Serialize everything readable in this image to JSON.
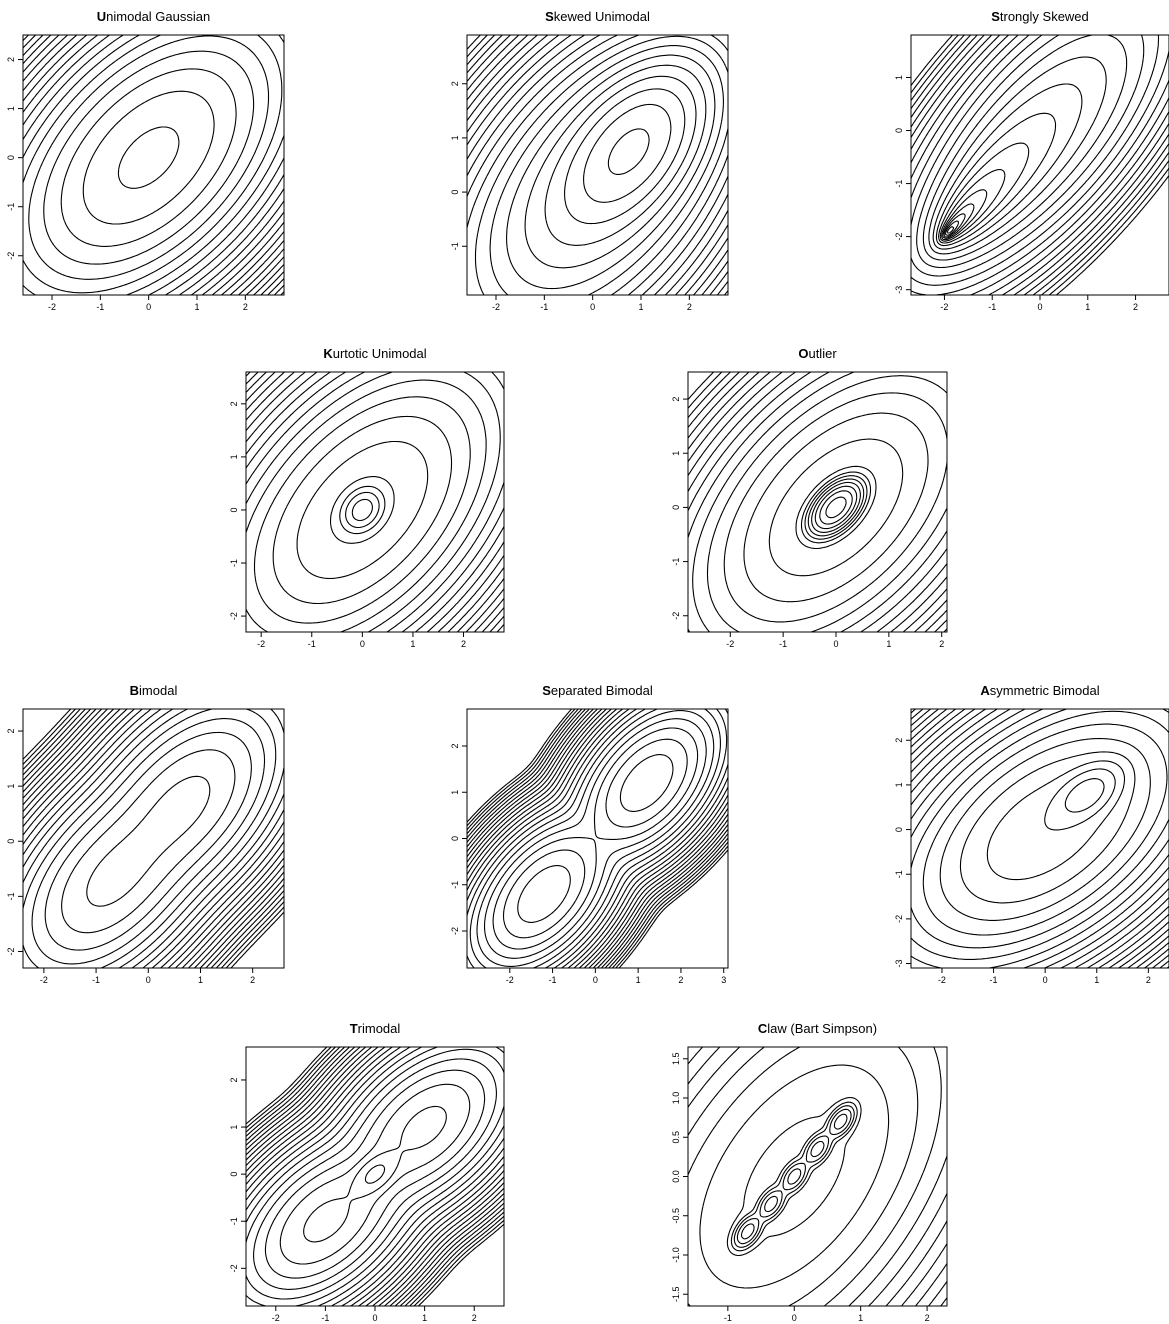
{
  "chart_data": [
    {
      "type": "contour",
      "title_initial": "U",
      "title_rest": "nimodal Gaussian",
      "x_ticks": [
        "-2",
        "-1",
        "0",
        "1",
        "2"
      ],
      "x_tick_values": [
        -2,
        -1,
        0,
        1,
        2
      ],
      "y_ticks": [
        "-2",
        "-1",
        "0",
        "1",
        "2"
      ],
      "y_tick_values": [
        -2,
        -1,
        0,
        1,
        2
      ],
      "xlim": [
        -2.6,
        2.8
      ],
      "ylim": [
        -2.8,
        2.5
      ],
      "components": [
        {
          "weight": 1,
          "mean": [
            0,
            0
          ],
          "cov": [
            [
              1,
              0.5
            ],
            [
              0.5,
              1
            ]
          ]
        }
      ]
    },
    {
      "type": "contour",
      "title_initial": "S",
      "title_rest": "kewed Unimodal",
      "x_ticks": [
        "-2",
        "-1",
        "0",
        "1",
        "2"
      ],
      "x_tick_values": [
        -2,
        -1,
        0,
        1,
        2
      ],
      "y_ticks": [
        "-1",
        "0",
        "1",
        "2"
      ],
      "y_tick_values": [
        -1,
        0,
        1,
        2
      ],
      "xlim": [
        -2.6,
        2.8
      ],
      "ylim": [
        -1.9,
        2.9
      ],
      "components": [
        {
          "weight": 0.2,
          "mean": [
            0,
            0
          ],
          "cov": [
            [
              1,
              0.5
            ],
            [
              0.5,
              1
            ]
          ]
        },
        {
          "weight": 0.2,
          "mean": [
            0.5,
            0.5
          ],
          "cov": [
            [
              0.64,
              0.32
            ],
            [
              0.32,
              0.64
            ]
          ]
        },
        {
          "weight": 0.6,
          "mean": [
            0.8,
            0.8
          ],
          "cov": [
            [
              0.36,
              0.18
            ],
            [
              0.18,
              0.36
            ]
          ]
        }
      ]
    },
    {
      "type": "contour",
      "title_initial": "S",
      "title_rest": "trongly Skewed",
      "x_ticks": [
        "-2",
        "-1",
        "0",
        "1",
        "2"
      ],
      "x_tick_values": [
        -2,
        -1,
        0,
        1,
        2
      ],
      "y_ticks": [
        "-3",
        "-2",
        "-1",
        "0",
        "1"
      ],
      "y_tick_values": [
        -3,
        -2,
        -1,
        0,
        1
      ],
      "xlim": [
        -2.7,
        2.7
      ],
      "ylim": [
        -3.1,
        1.8
      ],
      "components": [
        {
          "weight": 0.125,
          "mean": [
            0,
            0
          ],
          "cov": [
            [
              1,
              0.7
            ],
            [
              0.7,
              1
            ]
          ]
        },
        {
          "weight": 0.125,
          "mean": [
            -0.67,
            -0.67
          ],
          "cov": [
            [
              0.44,
              0.31
            ],
            [
              0.31,
              0.44
            ]
          ]
        },
        {
          "weight": 0.125,
          "mean": [
            -1.11,
            -1.11
          ],
          "cov": [
            [
              0.2,
              0.14
            ],
            [
              0.14,
              0.2
            ]
          ]
        },
        {
          "weight": 0.125,
          "mean": [
            -1.41,
            -1.41
          ],
          "cov": [
            [
              0.088,
              0.06
            ],
            [
              0.06,
              0.088
            ]
          ]
        },
        {
          "weight": 0.125,
          "mean": [
            -1.61,
            -1.61
          ],
          "cov": [
            [
              0.039,
              0.027
            ],
            [
              0.027,
              0.039
            ]
          ]
        },
        {
          "weight": 0.125,
          "mean": [
            -1.74,
            -1.74
          ],
          "cov": [
            [
              0.017,
              0.012
            ],
            [
              0.012,
              0.017
            ]
          ]
        },
        {
          "weight": 0.125,
          "mean": [
            -1.83,
            -1.83
          ],
          "cov": [
            [
              0.008,
              0.005
            ],
            [
              0.005,
              0.008
            ]
          ]
        },
        {
          "weight": 0.125,
          "mean": [
            -1.89,
            -1.89
          ],
          "cov": [
            [
              0.0034,
              0.0024
            ],
            [
              0.0024,
              0.0034
            ]
          ]
        }
      ]
    },
    {
      "type": "contour",
      "title_initial": "K",
      "title_rest": "urtotic Unimodal",
      "x_ticks": [
        "-2",
        "-1",
        "0",
        "1",
        "2"
      ],
      "x_tick_values": [
        -2,
        -1,
        0,
        1,
        2
      ],
      "y_ticks": [
        "-2",
        "-1",
        "0",
        "1",
        "2"
      ],
      "y_tick_values": [
        -2,
        -1,
        0,
        1,
        2
      ],
      "xlim": [
        -2.3,
        2.8
      ],
      "ylim": [
        -2.3,
        2.6
      ],
      "components": [
        {
          "weight": 0.667,
          "mean": [
            0,
            0
          ],
          "cov": [
            [
              1,
              0.5
            ],
            [
              0.5,
              1
            ]
          ]
        },
        {
          "weight": 0.333,
          "mean": [
            0,
            0
          ],
          "cov": [
            [
              0.04,
              0.01
            ],
            [
              0.01,
              0.04
            ]
          ]
        }
      ]
    },
    {
      "type": "contour",
      "title_initial": "O",
      "title_rest": "utlier",
      "x_ticks": [
        "-2",
        "-1",
        "0",
        "1",
        "2"
      ],
      "x_tick_values": [
        -2,
        -1,
        0,
        1,
        2
      ],
      "y_ticks": [
        "-2",
        "-1",
        "0",
        "1",
        "2"
      ],
      "y_tick_values": [
        -2,
        -1,
        0,
        1,
        2
      ],
      "xlim": [
        -2.8,
        2.1
      ],
      "ylim": [
        -2.3,
        2.5
      ],
      "components": [
        {
          "weight": 0.1,
          "mean": [
            0,
            0
          ],
          "cov": [
            [
              1,
              0.5
            ],
            [
              0.5,
              1
            ]
          ]
        },
        {
          "weight": 0.9,
          "mean": [
            0,
            0
          ],
          "cov": [
            [
              0.04,
              0.02
            ],
            [
              0.02,
              0.04
            ]
          ]
        }
      ]
    },
    {
      "type": "contour",
      "title_initial": "B",
      "title_rest": "imodal",
      "x_ticks": [
        "-2",
        "-1",
        "0",
        "1",
        "2"
      ],
      "x_tick_values": [
        -2,
        -1,
        0,
        1,
        2
      ],
      "y_ticks": [
        "-2",
        "-1",
        "0",
        "1",
        "2"
      ],
      "y_tick_values": [
        -2,
        -1,
        0,
        1,
        2
      ],
      "xlim": [
        -2.4,
        2.6
      ],
      "ylim": [
        -2.3,
        2.4
      ],
      "components": [
        {
          "weight": 0.5,
          "mean": [
            -0.7,
            -0.7
          ],
          "cov": [
            [
              0.49,
              0.245
            ],
            [
              0.245,
              0.49
            ]
          ]
        },
        {
          "weight": 0.5,
          "mean": [
            0.7,
            0.7
          ],
          "cov": [
            [
              0.49,
              0.245
            ],
            [
              0.245,
              0.49
            ]
          ]
        }
      ]
    },
    {
      "type": "contour",
      "title_initial": "S",
      "title_rest": "eparated Bimodal",
      "x_ticks": [
        "-2",
        "-1",
        "0",
        "1",
        "2",
        "3"
      ],
      "x_tick_values": [
        -2,
        -1,
        0,
        1,
        2,
        3
      ],
      "y_ticks": [
        "-2",
        "-1",
        "0",
        "1",
        "2"
      ],
      "y_tick_values": [
        -2,
        -1,
        0,
        1,
        2
      ],
      "xlim": [
        -3.0,
        3.1
      ],
      "ylim": [
        -2.8,
        2.8
      ],
      "components": [
        {
          "weight": 0.5,
          "mean": [
            -1.2,
            -1.2
          ],
          "cov": [
            [
              0.36,
              0.18
            ],
            [
              0.18,
              0.36
            ]
          ]
        },
        {
          "weight": 0.5,
          "mean": [
            1.2,
            1.2
          ],
          "cov": [
            [
              0.36,
              0.18
            ],
            [
              0.18,
              0.36
            ]
          ]
        }
      ]
    },
    {
      "type": "contour",
      "title_initial": "A",
      "title_rest": "symmetric Bimodal",
      "x_ticks": [
        "-2",
        "-1",
        "0",
        "1",
        "2"
      ],
      "x_tick_values": [
        -2,
        -1,
        0,
        1,
        2
      ],
      "y_ticks": [
        "-3",
        "-2",
        "-1",
        "0",
        "1",
        "2"
      ],
      "y_tick_values": [
        -3,
        -2,
        -1,
        0,
        1,
        2
      ],
      "xlim": [
        -2.6,
        2.4
      ],
      "ylim": [
        -3.1,
        2.7
      ],
      "components": [
        {
          "weight": 0.75,
          "mean": [
            0,
            0
          ],
          "cov": [
            [
              1,
              0.5
            ],
            [
              0.5,
              1
            ]
          ]
        },
        {
          "weight": 0.25,
          "mean": [
            0.8,
            0.8
          ],
          "cov": [
            [
              0.11,
              0.055
            ],
            [
              0.055,
              0.11
            ]
          ]
        }
      ]
    },
    {
      "type": "contour",
      "title_initial": "T",
      "title_rest": "rimodal",
      "x_ticks": [
        "-2",
        "-1",
        "0",
        "1",
        "2"
      ],
      "x_tick_values": [
        -2,
        -1,
        0,
        1,
        2
      ],
      "y_ticks": [
        "-2",
        "-1",
        "0",
        "1",
        "2"
      ],
      "y_tick_values": [
        -2,
        -1,
        0,
        1,
        2
      ],
      "xlim": [
        -2.6,
        2.6
      ],
      "ylim": [
        -2.8,
        2.7
      ],
      "components": [
        {
          "weight": 0.45,
          "mean": [
            -1,
            -1
          ],
          "cov": [
            [
              0.44,
              0.22
            ],
            [
              0.22,
              0.44
            ]
          ]
        },
        {
          "weight": 0.45,
          "mean": [
            1,
            1
          ],
          "cov": [
            [
              0.44,
              0.22
            ],
            [
              0.22,
              0.44
            ]
          ]
        },
        {
          "weight": 0.1,
          "mean": [
            0,
            0
          ],
          "cov": [
            [
              0.06,
              0.03
            ],
            [
              0.03,
              0.06
            ]
          ]
        }
      ]
    },
    {
      "type": "contour",
      "title_initial": "C",
      "title_rest": "law (Bart Simpson)",
      "x_ticks": [
        "-1",
        "0",
        "1",
        "2"
      ],
      "x_tick_values": [
        -1,
        0,
        1,
        2
      ],
      "y_ticks": [
        "-1.5",
        "-1.0",
        "-0.5",
        "0.0",
        "0.5",
        "1.0",
        "1.5"
      ],
      "y_tick_values": [
        -1.5,
        -1,
        -0.5,
        0,
        0.5,
        1,
        1.5
      ],
      "xlim": [
        -1.6,
        2.3
      ],
      "ylim": [
        -1.65,
        1.65
      ],
      "components": [
        {
          "weight": 0.5,
          "mean": [
            0,
            0
          ],
          "cov": [
            [
              1,
              0.5
            ],
            [
              0.5,
              1
            ]
          ]
        },
        {
          "weight": 0.1,
          "mean": [
            -0.7,
            -0.7
          ],
          "cov": [
            [
              0.01,
              0.005
            ],
            [
              0.005,
              0.01
            ]
          ]
        },
        {
          "weight": 0.1,
          "mean": [
            -0.35,
            -0.35
          ],
          "cov": [
            [
              0.01,
              0.005
            ],
            [
              0.005,
              0.01
            ]
          ]
        },
        {
          "weight": 0.1,
          "mean": [
            0,
            0
          ],
          "cov": [
            [
              0.01,
              0.005
            ],
            [
              0.005,
              0.01
            ]
          ]
        },
        {
          "weight": 0.1,
          "mean": [
            0.35,
            0.35
          ],
          "cov": [
            [
              0.01,
              0.005
            ],
            [
              0.005,
              0.01
            ]
          ]
        },
        {
          "weight": 0.1,
          "mean": [
            0.7,
            0.7
          ],
          "cov": [
            [
              0.01,
              0.005
            ],
            [
              0.005,
              0.01
            ]
          ]
        }
      ]
    }
  ]
}
